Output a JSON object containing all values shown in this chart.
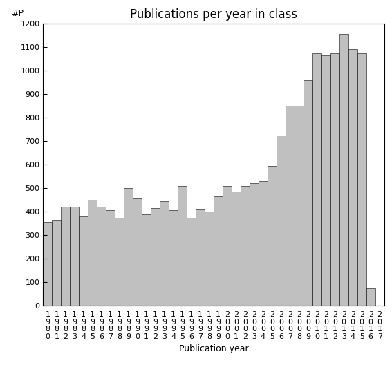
{
  "title": "Publications per year in class",
  "xlabel": "Publication year",
  "ylabel": "#P",
  "years": [
    "1980",
    "1981",
    "1982",
    "1983",
    "1984",
    "1985",
    "1986",
    "1987",
    "1988",
    "1989",
    "1990",
    "1991",
    "1992",
    "1993",
    "1994",
    "1995",
    "1996",
    "1997",
    "1998",
    "1999",
    "2000",
    "2001",
    "2002",
    "2003",
    "2004",
    "2005",
    "2006",
    "2007",
    "2008",
    "2009",
    "2010",
    "2011",
    "2012",
    "2013",
    "2014",
    "2015",
    "2016",
    "2017"
  ],
  "values": [
    355,
    365,
    420,
    420,
    380,
    450,
    420,
    405,
    375,
    500,
    455,
    390,
    415,
    445,
    405,
    510,
    375,
    410,
    400,
    465,
    510,
    485,
    510,
    520,
    530,
    595,
    725,
    850,
    850,
    960,
    1075,
    1065,
    1075,
    1155,
    1090,
    1075,
    75,
    0
  ],
  "bar_color": "#c0c0c0",
  "bar_edge_color": "#000000",
  "ylim": [
    0,
    1200
  ],
  "yticks": [
    0,
    100,
    200,
    300,
    400,
    500,
    600,
    700,
    800,
    900,
    1000,
    1100,
    1200
  ],
  "background_color": "#ffffff",
  "title_fontsize": 12,
  "axis_fontsize": 9,
  "tick_fontsize": 8
}
